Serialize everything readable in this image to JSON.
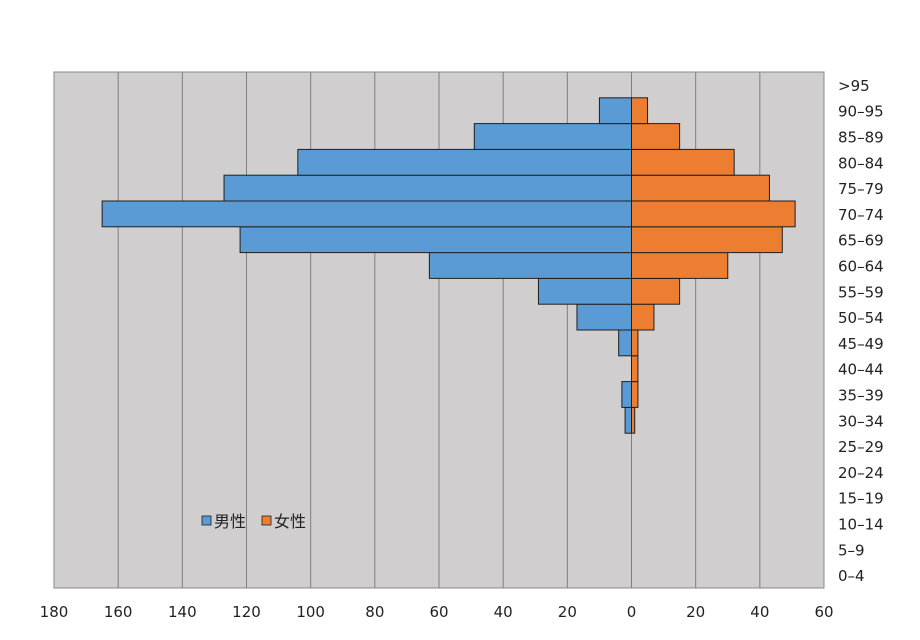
{
  "chart_data": {
    "type": "bar",
    "orientation": "horizontal-population-pyramid",
    "title": "",
    "xlabel": "",
    "ylabel": "",
    "categories": [
      "0–4",
      "5–9",
      "10–14",
      "15–19",
      "20–24",
      "25–29",
      "30–34",
      "35–39",
      "40–44",
      "45–49",
      "50–54",
      "55–59",
      "60–64",
      "65–69",
      "70–74",
      "75–79",
      "80–84",
      "85–89",
      "90–95",
      ">95"
    ],
    "series": [
      {
        "name": "男性",
        "color": "#5b9bd5",
        "values": [
          0,
          0,
          0,
          0,
          0,
          0,
          2,
          3,
          0,
          4,
          17,
          29,
          63,
          122,
          165,
          127,
          104,
          49,
          10,
          0
        ]
      },
      {
        "name": "女性",
        "color": "#ed7d31",
        "values": [
          0,
          0,
          0,
          0,
          0,
          0,
          1,
          2,
          2,
          2,
          7,
          15,
          30,
          47,
          51,
          43,
          32,
          15,
          5,
          0
        ]
      }
    ],
    "xlim": [
      -180,
      60
    ],
    "x_ticks": [
      {
        "value": -180,
        "label": "180"
      },
      {
        "value": -160,
        "label": "160"
      },
      {
        "value": -140,
        "label": "140"
      },
      {
        "value": -120,
        "label": "120"
      },
      {
        "value": -100,
        "label": "100"
      },
      {
        "value": -80,
        "label": "80"
      },
      {
        "value": -60,
        "label": "60"
      },
      {
        "value": -40,
        "label": "40"
      },
      {
        "value": -20,
        "label": "20"
      },
      {
        "value": 0,
        "label": "0"
      },
      {
        "value": 20,
        "label": "20"
      },
      {
        "value": 40,
        "label": "40"
      },
      {
        "value": 60,
        "label": "60"
      }
    ],
    "grid": true,
    "legend_position": "lower-left",
    "plot_background": "#d0cece"
  }
}
